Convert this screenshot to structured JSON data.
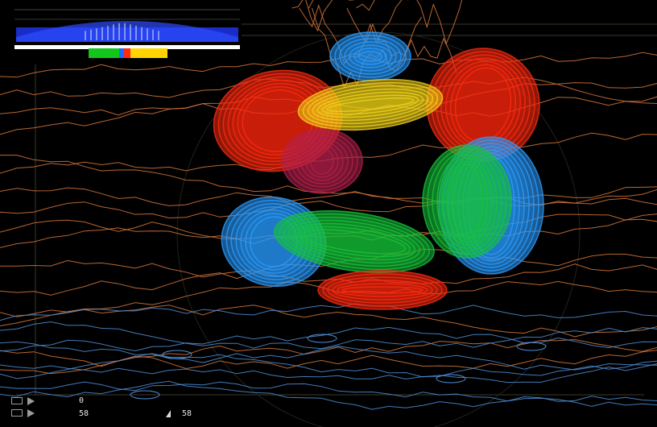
{
  "viewer": {
    "scene": "3d-radiation-lobes-over-terrain",
    "colors": {
      "background": "#000000",
      "lobe_red": "#ff2a10",
      "lobe_blue": "#2a9cff",
      "lobe_green": "#16c23a",
      "lobe_yellow": "#f2d21a",
      "contour_orange": "#d9783a",
      "contour_blue": "#4f8fd8",
      "grid": "#3a3a2a"
    }
  },
  "spectrum_panel": {
    "colors": {
      "band": "#1a2cc8",
      "white_bar": "#ffffff",
      "segment_green": "#12c61c",
      "segment_blue": "#1a6cff",
      "segment_red": "#ff2a10",
      "segment_yellow": "#ffd400"
    }
  },
  "hud": {
    "icons": [
      "layer-box-icon",
      "play-arrow-icon",
      "layer-box-icon",
      "play-arrow-icon"
    ],
    "top_value": "0",
    "bottom_value": "58",
    "right_value": "58"
  }
}
